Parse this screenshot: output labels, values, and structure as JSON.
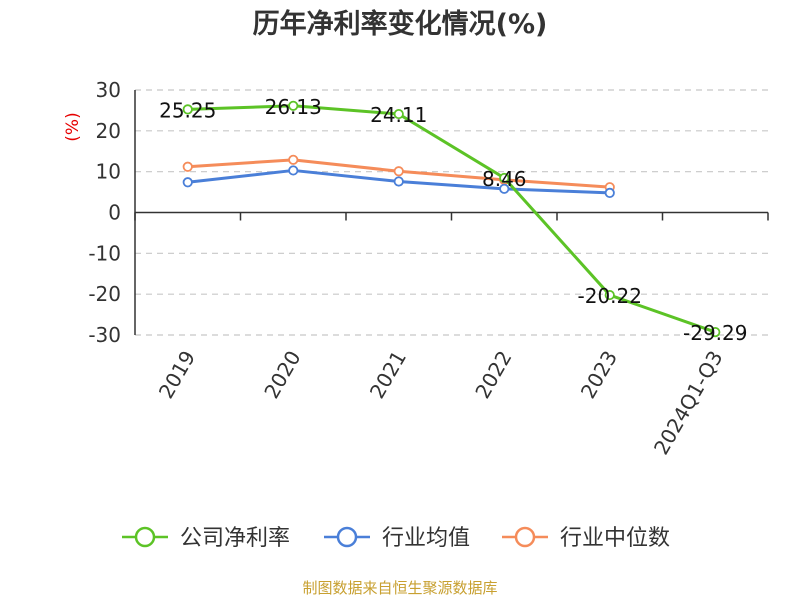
{
  "chart_data": {
    "type": "line",
    "title": "历年净利率变化情况(%)",
    "ylabel": "(%)",
    "categories": [
      "2019",
      "2020",
      "2021",
      "2022",
      "2023",
      "2024Q1-Q3"
    ],
    "ylim": [
      -30,
      30
    ],
    "yticks": [
      30,
      20,
      10,
      0,
      -10,
      -20,
      -30
    ],
    "grid": true,
    "legend_position": "bottom",
    "series": [
      {
        "name": "公司净利率",
        "color": "#5cc326",
        "values": [
          25.25,
          26.13,
          24.11,
          8.46,
          -20.22,
          -29.29
        ],
        "labels": [
          "25.25",
          "26.13",
          "24.11",
          "8.46",
          "-20.22",
          "-29.29"
        ]
      },
      {
        "name": "行业均值",
        "color": "#4a7fd8",
        "values": [
          7.4,
          10.3,
          7.6,
          5.8,
          4.8,
          null
        ]
      },
      {
        "name": "行业中位数",
        "color": "#f58c5a",
        "values": [
          11.2,
          12.9,
          10.1,
          8.0,
          6.2,
          null
        ]
      }
    ]
  },
  "source": "制图数据来自恒生聚源数据库"
}
